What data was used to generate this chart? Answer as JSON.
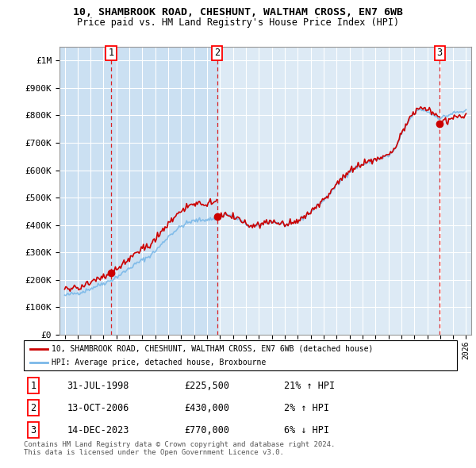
{
  "title_line1": "10, SHAMBROOK ROAD, CHESHUNT, WALTHAM CROSS, EN7 6WB",
  "title_line2": "Price paid vs. HM Land Registry's House Price Index (HPI)",
  "ylim": [
    0,
    1050000
  ],
  "yticks": [
    0,
    100000,
    200000,
    300000,
    400000,
    500000,
    600000,
    700000,
    800000,
    900000,
    1000000
  ],
  "ytick_labels": [
    "£0",
    "£100K",
    "£200K",
    "£300K",
    "£400K",
    "£500K",
    "£600K",
    "£700K",
    "£800K",
    "£900K",
    "£1M"
  ],
  "xlim_start": 1994.6,
  "xlim_end": 2026.4,
  "hpi_color": "#7ab8e8",
  "price_color": "#cc0000",
  "background_color": "#ffffff",
  "plot_bg_color": "#ddeaf5",
  "grid_color": "#ffffff",
  "sale_points": [
    {
      "year": 1998.583,
      "price": 225500,
      "label": "1"
    },
    {
      "year": 2006.786,
      "price": 430000,
      "label": "2"
    },
    {
      "year": 2023.958,
      "price": 770000,
      "label": "3"
    }
  ],
  "sale_dashed_color": "#dd0000",
  "shade1_start": 1994.6,
  "shade1_end": 2006.786,
  "legend_line1": "10, SHAMBROOK ROAD, CHESHUNT, WALTHAM CROSS, EN7 6WB (detached house)",
  "legend_line2": "HPI: Average price, detached house, Broxbourne",
  "table_rows": [
    {
      "num": "1",
      "date": "31-JUL-1998",
      "price": "£225,500",
      "hpi": "21% ↑ HPI"
    },
    {
      "num": "2",
      "date": "13-OCT-2006",
      "price": "£430,000",
      "hpi": "2% ↑ HPI"
    },
    {
      "num": "3",
      "date": "14-DEC-2023",
      "price": "£770,000",
      "hpi": "6% ↓ HPI"
    }
  ],
  "footnote1": "Contains HM Land Registry data © Crown copyright and database right 2024.",
  "footnote2": "This data is licensed under the Open Government Licence v3.0."
}
